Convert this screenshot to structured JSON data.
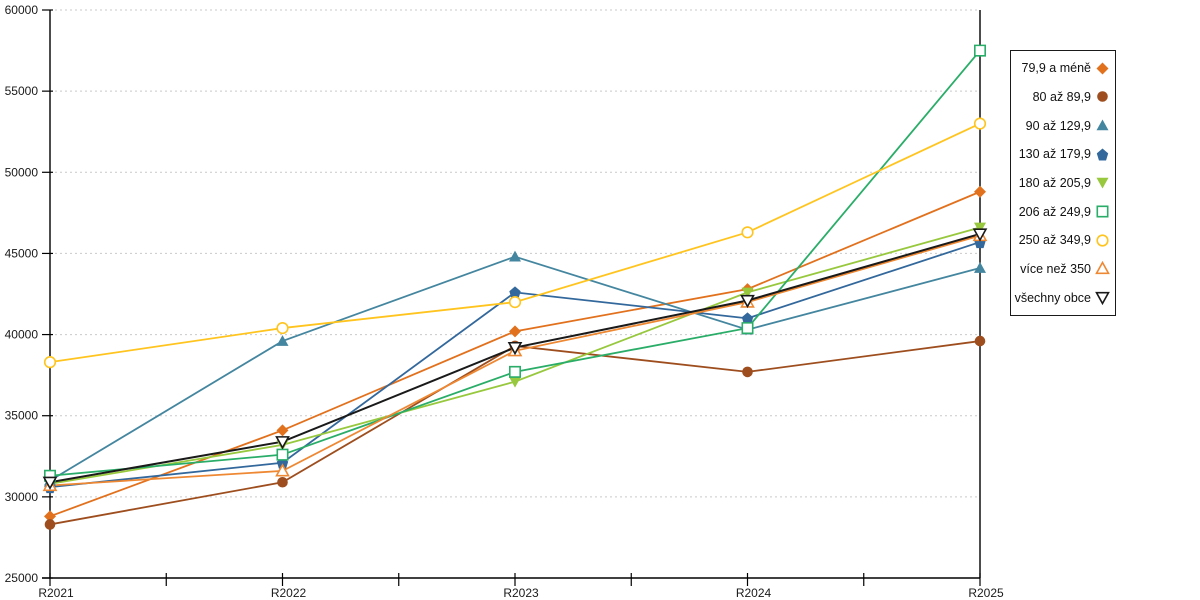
{
  "chart_data": {
    "type": "line",
    "title": "",
    "xlabel": "",
    "ylabel": "",
    "categories": [
      "R2021",
      "R2022",
      "R2023",
      "R2024",
      "R2025"
    ],
    "ylim": [
      25000,
      60000
    ],
    "yticks": [
      25000,
      30000,
      35000,
      40000,
      45000,
      50000,
      55000,
      60000
    ],
    "grid": "horizontal-dotted",
    "legend_position": "right",
    "axis_color": "#000000",
    "grid_color": "#c9c9c9",
    "series": [
      {
        "name": "79,9 a méně",
        "marker": "diamond",
        "fill": "solid",
        "color": "#E2711D",
        "values": [
          28800,
          34100,
          40200,
          42800,
          48800
        ]
      },
      {
        "name": "80 až 89,9",
        "marker": "circle",
        "fill": "solid",
        "color": "#9E4E1E",
        "values": [
          28300,
          30900,
          39300,
          37700,
          39600
        ]
      },
      {
        "name": "90 až 129,9",
        "marker": "triangle-up",
        "fill": "solid",
        "color": "#44869F",
        "values": [
          31000,
          39600,
          44800,
          40300,
          44100
        ]
      },
      {
        "name": "130 až 179,9",
        "marker": "pentagon",
        "fill": "solid",
        "color": "#33689C",
        "values": [
          30600,
          32100,
          42600,
          41000,
          45700
        ]
      },
      {
        "name": "180 až 205,9",
        "marker": "triangle-down",
        "fill": "solid",
        "color": "#97C83D",
        "values": [
          30800,
          33200,
          37100,
          42600,
          46600
        ]
      },
      {
        "name": "206 až 249,9",
        "marker": "square",
        "fill": "hollow",
        "color": "#2AAD68",
        "values": [
          31300,
          32600,
          37700,
          40400,
          57500
        ]
      },
      {
        "name": "250 až 349,9",
        "marker": "circle",
        "fill": "hollow",
        "color": "#FFC41E",
        "values": [
          38300,
          40400,
          42000,
          46300,
          53000
        ]
      },
      {
        "name": "více než 350",
        "marker": "triangle-up",
        "fill": "hollow",
        "color": "#EE8833",
        "values": [
          30700,
          31600,
          39000,
          42000,
          46100
        ]
      },
      {
        "name": "všechny obce",
        "marker": "triangle-down",
        "fill": "hollow",
        "color": "#1A1A1A",
        "values": [
          30900,
          33400,
          39200,
          42100,
          46200
        ]
      }
    ]
  }
}
